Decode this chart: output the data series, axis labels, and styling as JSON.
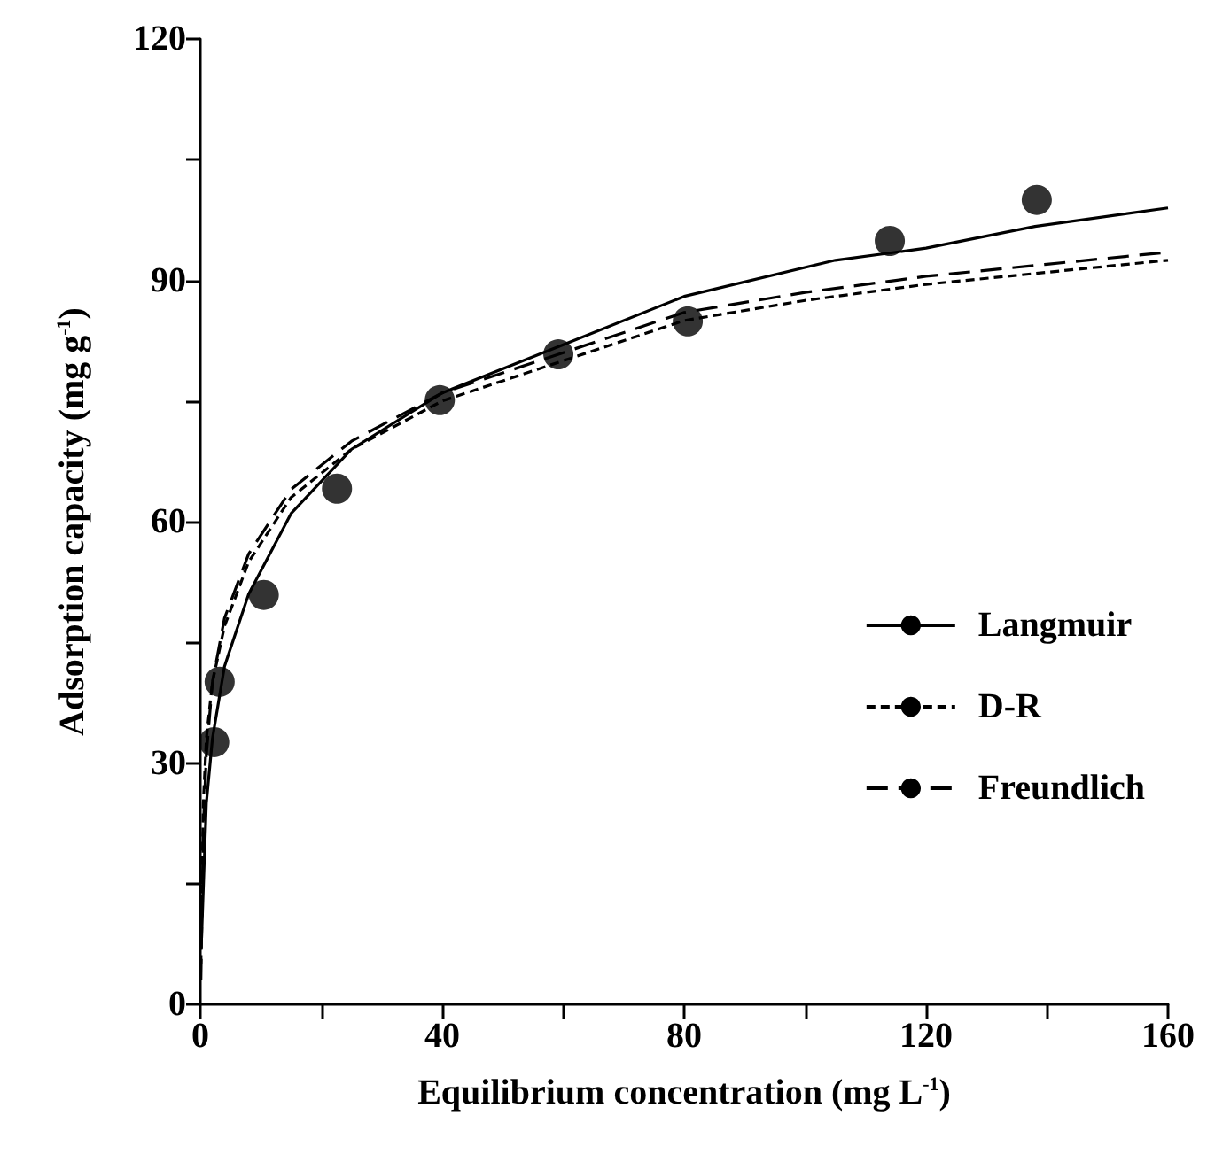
{
  "chart_data": {
    "type": "line",
    "xlabel": "Equilibrium concentration (mg L$^{-1}$)",
    "ylabel": "Adsorption capacity (mg g$^{-1}$)",
    "xlim": [
      0,
      160
    ],
    "xticks": [
      0,
      {
        "value": 20,
        "label": null
      },
      40,
      {
        "value": 60,
        "label": null
      },
      80,
      {
        "value": 100,
        "label": null
      },
      120,
      {
        "value": 140,
        "label": null
      },
      160
    ],
    "ylim": [
      0,
      120
    ],
    "yticks": [
      0,
      {
        "value": 15,
        "label": null
      },
      30,
      {
        "value": 45,
        "label": null
      },
      60,
      {
        "value": 75,
        "label": null
      },
      90,
      {
        "value": 105,
        "label": null
      },
      120
    ],
    "grid": false,
    "legend": "bottom right",
    "series": [
      {
        "type": "scatter",
        "color": "#000000",
        "marker": "circle",
        "x": [
          2.3,
          3.2,
          10.5,
          22.6,
          39.6,
          59.2,
          80.6,
          114,
          138.3
        ],
        "values": [
          32.6,
          40.1,
          50.9,
          64.1,
          75.1,
          80.8,
          84.9,
          94.9,
          100
        ]
      },
      {
        "name": "Langmuir",
        "type": "line",
        "color": "#000000",
        "line_style": "solid",
        "marker": "none",
        "x": [
          0.2,
          1,
          2,
          4,
          8,
          15,
          25,
          40,
          60,
          80,
          105,
          120,
          138,
          160
        ],
        "values": [
          8,
          25,
          33,
          42,
          51,
          61,
          69,
          76,
          82,
          88,
          92.5,
          94,
          96.7,
          99
        ]
      },
      {
        "name": "D-R",
        "type": "line",
        "color": "#000000",
        "line_style": "dotted",
        "marker": "none",
        "x": [
          0.1,
          0.5,
          1,
          2,
          4,
          8,
          15,
          25,
          40,
          60,
          80,
          100,
          120,
          140,
          160
        ],
        "values": [
          5,
          25,
          33,
          40,
          47,
          55,
          63,
          69,
          75,
          80,
          85,
          87.5,
          89.5,
          91,
          92.5
        ]
      },
      {
        "name": "Freundlich",
        "type": "line",
        "color": "#000000",
        "line_style": "dashed",
        "marker": "none",
        "x": [
          0.1,
          0.5,
          1,
          2,
          4,
          8,
          15,
          25,
          40,
          60,
          80,
          100,
          120,
          140,
          160
        ],
        "values": [
          3,
          22,
          31,
          40,
          48,
          56,
          64,
          70,
          76,
          81,
          86,
          88.5,
          90.5,
          92,
          93.5
        ]
      }
    ]
  }
}
